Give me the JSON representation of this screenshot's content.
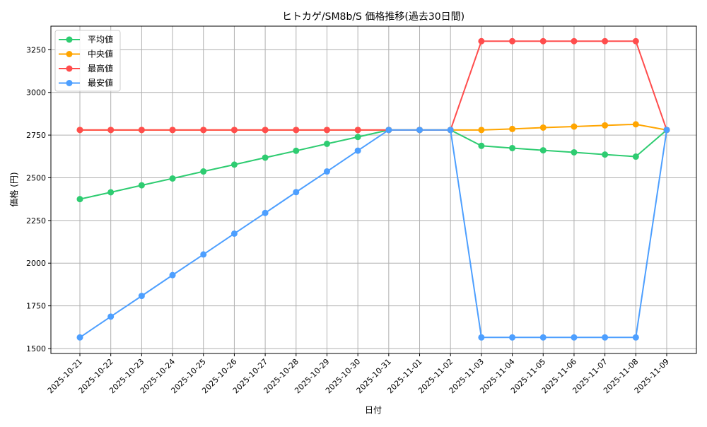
{
  "chart_data": {
    "type": "line",
    "title": "ヒトカゲ/SM8b/S 価格推移(過去30日間)",
    "xlabel": "日付",
    "ylabel": "価格 (円)",
    "ylim": [
      1471,
      3388
    ],
    "yticks": [
      1500,
      1750,
      2000,
      2250,
      2500,
      2750,
      3000,
      3250
    ],
    "grid": true,
    "legend_position": "top-left",
    "categories": [
      "2025-10-21",
      "2025-10-22",
      "2025-10-23",
      "2025-10-24",
      "2025-10-25",
      "2025-10-26",
      "2025-10-27",
      "2025-10-28",
      "2025-10-29",
      "2025-10-30",
      "2025-10-31",
      "2025-11-01",
      "2025-11-02",
      "2025-11-03",
      "2025-11-04",
      "2025-11-05",
      "2025-11-06",
      "2025-11-07",
      "2025-11-08",
      "2025-11-09"
    ],
    "series": [
      {
        "name": "平均値",
        "color": "#2ecc71",
        "values": [
          2375,
          2415,
          2456,
          2496,
          2537,
          2577,
          2618,
          2658,
          2699,
          2739,
          2780,
          2780,
          2780,
          2687,
          2674,
          2661,
          2649,
          2636,
          2624,
          2780
        ]
      },
      {
        "name": "中央値",
        "color": "#ffa500",
        "values": [
          2780,
          2780,
          2780,
          2780,
          2780,
          2780,
          2780,
          2780,
          2780,
          2780,
          2780,
          2780,
          2780,
          2780,
          2786,
          2794,
          2800,
          2807,
          2813,
          2780
        ]
      },
      {
        "name": "最高値",
        "color": "#ff4d4d",
        "values": [
          2780,
          2780,
          2780,
          2780,
          2780,
          2780,
          2780,
          2780,
          2780,
          2780,
          2780,
          2780,
          2780,
          3300,
          3300,
          3300,
          3300,
          3300,
          3300,
          2780
        ]
      },
      {
        "name": "最安値",
        "color": "#4d9fff",
        "values": [
          1565,
          1687,
          1808,
          1930,
          2051,
          2173,
          2294,
          2416,
          2537,
          2659,
          2780,
          2780,
          2780,
          1565,
          1565,
          1565,
          1565,
          1565,
          1565,
          2780
        ]
      }
    ]
  }
}
